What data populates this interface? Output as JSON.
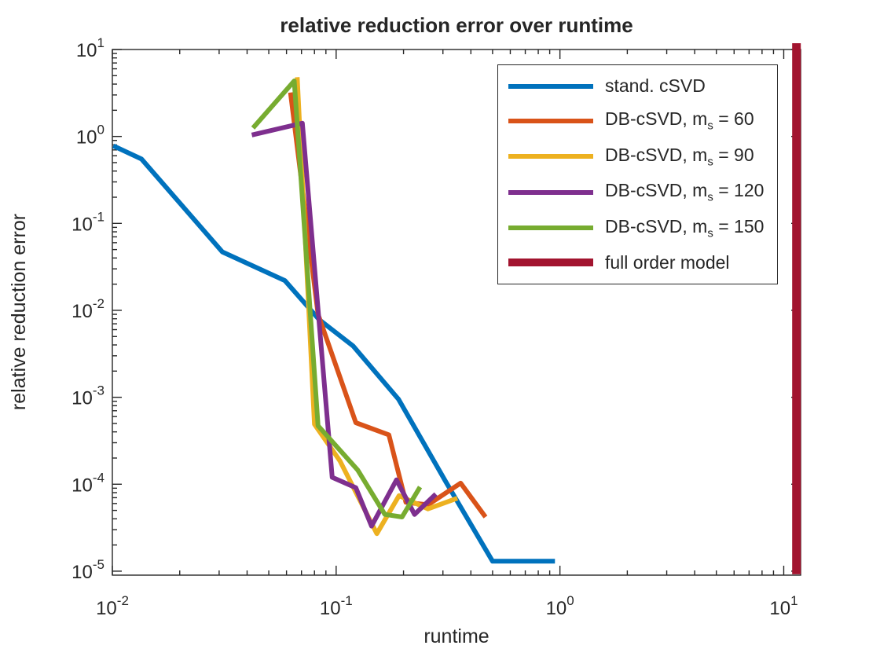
{
  "title": "relative reduction error over runtime",
  "chart_data": {
    "type": "line",
    "title": "relative reduction error over runtime",
    "xlabel": "runtime",
    "ylabel": "relative reduction error",
    "x_scale": "log",
    "y_scale": "log",
    "xlim": [
      0.01,
      11.9
    ],
    "ylim": [
      9e-06,
      10
    ],
    "x_tick_exponents": [
      -2,
      -1,
      0,
      1
    ],
    "y_tick_exponents": [
      1,
      0,
      -1,
      -2,
      -3,
      -4,
      -5
    ],
    "grid": false,
    "legend_position": "upper-right-inside",
    "series": [
      {
        "name": "stand. cSVD",
        "color": "#0072BD",
        "linewidth": 6,
        "points": [
          [
            0.0101,
            0.78
          ],
          [
            0.0135,
            0.55
          ],
          [
            0.031,
            0.047
          ],
          [
            0.059,
            0.022
          ],
          [
            0.084,
            0.0078
          ],
          [
            0.119,
            0.0039
          ],
          [
            0.19,
            0.00095
          ],
          [
            0.31,
            0.000105
          ],
          [
            0.5,
            1.3e-05
          ],
          [
            0.95,
            1.3e-05
          ]
        ]
      },
      {
        "name": "DB-cSVD, m_s = 60",
        "color": "#D95319",
        "linewidth": 6,
        "points": [
          [
            0.0625,
            3.2
          ],
          [
            0.083,
            0.009
          ],
          [
            0.1225,
            0.00051
          ],
          [
            0.172,
            0.00037
          ],
          [
            0.205,
            6.2e-05
          ],
          [
            0.257,
            5.8e-05
          ],
          [
            0.36,
            0.000103
          ],
          [
            0.465,
            4.2e-05
          ]
        ]
      },
      {
        "name": "DB-cSVD, m_s = 90",
        "color": "#EDB120",
        "linewidth": 6,
        "points": [
          [
            0.067,
            4.8
          ],
          [
            0.08,
            0.00049
          ],
          [
            0.104,
            0.000185
          ],
          [
            0.152,
            2.7e-05
          ],
          [
            0.191,
            7.4e-05
          ],
          [
            0.257,
            5.2e-05
          ],
          [
            0.348,
            6.9e-05
          ]
        ]
      },
      {
        "name": "DB-cSVD, m_s = 120",
        "color": "#7E2F8E",
        "linewidth": 6,
        "points": [
          [
            0.042,
            1.04
          ],
          [
            0.0706,
            1.42
          ],
          [
            0.096,
            0.00012
          ],
          [
            0.1225,
            9.1e-05
          ],
          [
            0.144,
            3.3e-05
          ],
          [
            0.186,
            0.000112
          ],
          [
            0.224,
            4.5e-05
          ],
          [
            0.279,
            7.7e-05
          ]
        ]
      },
      {
        "name": "DB-cSVD, m_s = 150",
        "color": "#77AC30",
        "linewidth": 6,
        "points": [
          [
            0.0425,
            1.25
          ],
          [
            0.065,
            4.35
          ],
          [
            0.083,
            0.00047
          ],
          [
            0.125,
            0.000145
          ],
          [
            0.165,
            4.5e-05
          ],
          [
            0.197,
            4.2e-05
          ],
          [
            0.237,
            9.3e-05
          ]
        ]
      },
      {
        "name": "full order model",
        "color": "#A2142F",
        "linewidth": 11,
        "points": [
          [
            11.4,
            9.2e-06
          ],
          [
            11.4,
            11.8
          ]
        ]
      }
    ]
  },
  "legend": {
    "entries": [
      {
        "pre": "stand. cSVD",
        "sub": "",
        "post": "",
        "color": "#0072BD",
        "sample_height": 6
      },
      {
        "pre": "DB-cSVD, m",
        "sub": "s",
        "post": " = 60",
        "color": "#D95319",
        "sample_height": 6
      },
      {
        "pre": "DB-cSVD, m",
        "sub": "s",
        "post": " = 90",
        "color": "#EDB120",
        "sample_height": 6
      },
      {
        "pre": "DB-cSVD, m",
        "sub": "s",
        "post": " = 120",
        "color": "#7E2F8E",
        "sample_height": 6
      },
      {
        "pre": "DB-cSVD, m",
        "sub": "s",
        "post": " = 150",
        "color": "#77AC30",
        "sample_height": 6
      },
      {
        "pre": "full order model",
        "sub": "",
        "post": "",
        "color": "#A2142F",
        "sample_height": 10
      }
    ]
  },
  "axis_color": "#262626",
  "tick_label_base": "10"
}
